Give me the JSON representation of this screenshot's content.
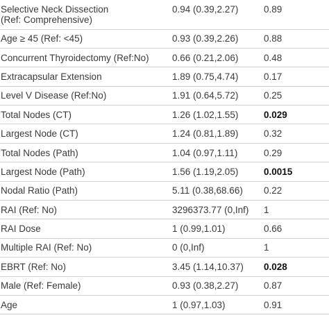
{
  "rows": [
    {
      "label": "Selective Neck Dissection",
      "label2": "(Ref: Comprehensive)",
      "or": "0.94 (0.39,2.27)",
      "p": "0.89",
      "bold": false
    },
    {
      "label": "Age ≥ 45 (Ref: <45)",
      "or": "0.93 (0.39,2.26)",
      "p": "0.88",
      "bold": false
    },
    {
      "label": "Concurrent Thyroidectomy (Ref:No)",
      "or": "0.66 (0.21,2.06)",
      "p": "0.48",
      "bold": false
    },
    {
      "label": "Extracapsular Extension",
      "or": "1.89 (0.75,4.74)",
      "p": "0.17",
      "bold": false
    },
    {
      "label": "Level V Disease (Ref:No)",
      "or": "1.91 (0.64,5.72)",
      "p": "0.25",
      "bold": false
    },
    {
      "label": "Total Nodes (CT)",
      "or": "1.26 (1.02,1.55)",
      "p": "0.029",
      "bold": true
    },
    {
      "label": "Largest Node (CT)",
      "or": "1.24 (0.81,1.89)",
      "p": "0.32",
      "bold": false
    },
    {
      "label": "Total Nodes (Path)",
      "or": "1.04 (0.97,1.11)",
      "p": "0.29",
      "bold": false
    },
    {
      "label": "Largest Node (Path)",
      "or": "1.56 (1.19,2.05)",
      "p": "0.0015",
      "bold": true
    },
    {
      "label": "Nodal Ratio (Path)",
      "or": "5.11 (0.38,68.66)",
      "p": "0.22",
      "bold": false
    },
    {
      "label": "RAI (Ref: No)",
      "or": "3296373.77 (0,Inf)",
      "p": "1",
      "bold": false
    },
    {
      "label": "RAI Dose",
      "or": "1 (0.99,1.01)",
      "p": "0.66",
      "bold": false
    },
    {
      "label": "Multiple RAI (Ref: No)",
      "or": "0 (0,Inf)",
      "p": "1",
      "bold": false
    },
    {
      "label": "EBRT (Ref: No)",
      "or": "3.45 (1.14,10.37)",
      "p": "0.028",
      "bold": true
    },
    {
      "label": "Male (Ref: Female)",
      "or": "0.93 (0.38,2.27)",
      "p": "0.87",
      "bold": false
    },
    {
      "label": "Age",
      "or": "1 (0.97,1.03)",
      "p": "0.91",
      "bold": false
    }
  ]
}
